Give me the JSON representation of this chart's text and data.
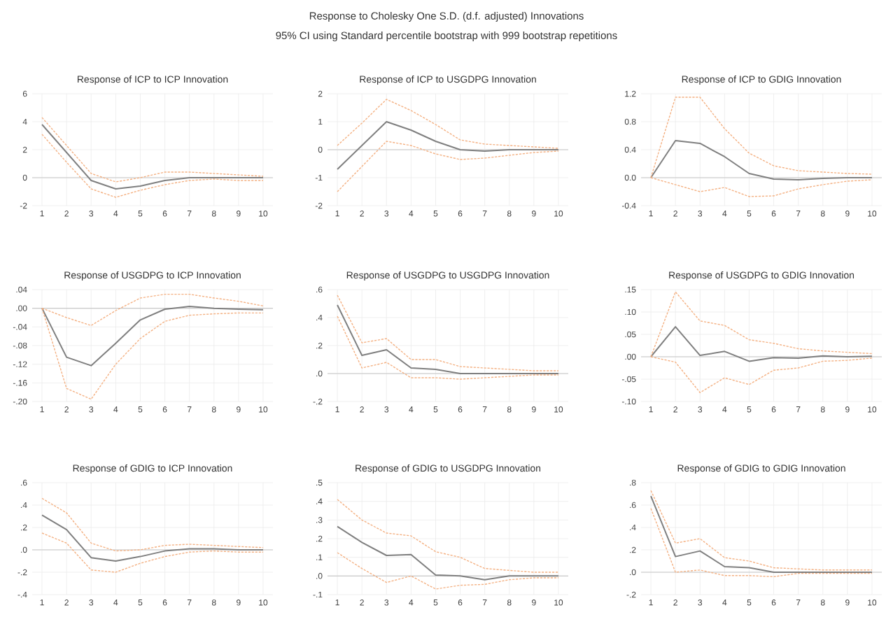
{
  "chart_data": [
    {
      "type": "other",
      "title": "Response to Cholesky One S.D. (d.f. adjusted) Innovations",
      "subtitle": "95% CI using Standard percentile bootstrap with 999 bootstrap repetitions"
    },
    {
      "type": "line",
      "title": "Response of ICP to ICP Innovation",
      "categories": [
        "1",
        "2",
        "3",
        "4",
        "5",
        "6",
        "7",
        "8",
        "9",
        "10"
      ],
      "grid": true,
      "ylim": [
        -2,
        6
      ],
      "yticks": [
        -2,
        0,
        2,
        4,
        6
      ],
      "ref_lines": [
        {
          "axis": "y",
          "value": 0,
          "color": "#c8c8c8"
        }
      ],
      "series": [
        {
          "color": "#7f7f7f",
          "line_style": "solid",
          "values": [
            3.8,
            1.8,
            -0.2,
            -0.8,
            -0.6,
            -0.2,
            0.0,
            0.0,
            0.0,
            0.0
          ]
        },
        {
          "color": "#f4b183",
          "line_style": "dashed",
          "values": [
            4.3,
            2.3,
            0.3,
            -0.3,
            0.0,
            0.4,
            0.4,
            0.3,
            0.2,
            0.1
          ]
        },
        {
          "color": "#f4b183",
          "line_style": "dashed",
          "values": [
            3.1,
            1.1,
            -0.8,
            -1.4,
            -0.9,
            -0.5,
            -0.2,
            -0.1,
            -0.2,
            -0.2
          ]
        }
      ]
    },
    {
      "type": "line",
      "title": "Response of ICP to USGDPG Innovation",
      "categories": [
        "1",
        "2",
        "3",
        "4",
        "5",
        "6",
        "7",
        "8",
        "9",
        "10"
      ],
      "grid": true,
      "ylim": [
        -2,
        2
      ],
      "yticks": [
        -2,
        -1,
        0,
        1,
        2
      ],
      "ref_lines": [
        {
          "axis": "y",
          "value": 0,
          "color": "#c8c8c8"
        }
      ],
      "series": [
        {
          "color": "#7f7f7f",
          "line_style": "solid",
          "values": [
            -0.7,
            0.15,
            1.0,
            0.7,
            0.3,
            0.0,
            -0.05,
            0.0,
            0.0,
            0.0
          ]
        },
        {
          "color": "#f4b183",
          "line_style": "dashed",
          "values": [
            0.15,
            0.95,
            1.8,
            1.4,
            0.9,
            0.35,
            0.2,
            0.15,
            0.1,
            0.05
          ]
        },
        {
          "color": "#f4b183",
          "line_style": "dashed",
          "values": [
            -1.5,
            -0.6,
            0.3,
            0.15,
            -0.15,
            -0.35,
            -0.3,
            -0.2,
            -0.1,
            -0.05
          ]
        }
      ]
    },
    {
      "type": "line",
      "title": "Response of ICP to GDIG Innovation",
      "categories": [
        "1",
        "2",
        "3",
        "4",
        "5",
        "6",
        "7",
        "8",
        "9",
        "10"
      ],
      "grid": true,
      "ylim": [
        -0.4,
        1.2
      ],
      "yticks": [
        {
          "value": -0.4,
          "label": "-0.4"
        },
        {
          "value": 0,
          "label": "0.0"
        },
        {
          "value": 0.4,
          "label": "0.4"
        },
        {
          "value": 0.8,
          "label": "0.8"
        },
        {
          "value": 1.2,
          "label": "1.2"
        }
      ],
      "ref_lines": [
        {
          "axis": "y",
          "value": 0,
          "color": "#c8c8c8"
        }
      ],
      "series": [
        {
          "color": "#7f7f7f",
          "line_style": "solid",
          "values": [
            0.0,
            0.53,
            0.49,
            0.3,
            0.06,
            -0.02,
            -0.03,
            -0.01,
            0.0,
            0.0
          ]
        },
        {
          "color": "#f4b183",
          "line_style": "dashed",
          "values": [
            0.0,
            1.15,
            1.15,
            0.7,
            0.35,
            0.17,
            0.1,
            0.08,
            0.06,
            0.05
          ]
        },
        {
          "color": "#f4b183",
          "line_style": "dashed",
          "values": [
            0.0,
            -0.1,
            -0.2,
            -0.14,
            -0.27,
            -0.26,
            -0.16,
            -0.1,
            -0.05,
            -0.03
          ]
        }
      ]
    },
    {
      "type": "line",
      "title": "Response of USGDPG to ICP Innovation",
      "categories": [
        "1",
        "2",
        "3",
        "4",
        "5",
        "6",
        "7",
        "8",
        "9",
        "10"
      ],
      "grid": true,
      "ylim": [
        -0.2,
        0.04
      ],
      "yticks": [
        {
          "value": -0.2,
          "label": "-.20"
        },
        {
          "value": -0.16,
          "label": "-.16"
        },
        {
          "value": -0.12,
          "label": "-.12"
        },
        {
          "value": -0.08,
          "label": "-.08"
        },
        {
          "value": -0.04,
          "label": "-.04"
        },
        {
          "value": 0,
          "label": ".00"
        },
        {
          "value": 0.04,
          "label": ".04"
        }
      ],
      "ref_lines": [
        {
          "axis": "y",
          "value": 0,
          "color": "#c8c8c8"
        }
      ],
      "series": [
        {
          "color": "#7f7f7f",
          "line_style": "solid",
          "values": [
            0.0,
            -0.105,
            -0.123,
            -0.075,
            -0.025,
            -0.002,
            0.004,
            0.0,
            -0.002,
            -0.003
          ]
        },
        {
          "color": "#f4b183",
          "line_style": "dashed",
          "values": [
            0.0,
            -0.02,
            -0.037,
            -0.005,
            0.022,
            0.03,
            0.03,
            0.022,
            0.015,
            0.005
          ]
        },
        {
          "color": "#f4b183",
          "line_style": "dashed",
          "values": [
            0.0,
            -0.172,
            -0.195,
            -0.12,
            -0.065,
            -0.028,
            -0.015,
            -0.012,
            -0.01,
            -0.01
          ]
        }
      ]
    },
    {
      "type": "line",
      "title": "Response of USGDPG to USGDPG Innovation",
      "categories": [
        "1",
        "2",
        "3",
        "4",
        "5",
        "6",
        "7",
        "8",
        "9",
        "10"
      ],
      "grid": true,
      "ylim": [
        -0.2,
        0.6
      ],
      "yticks": [
        {
          "value": -0.2,
          "label": "-.2"
        },
        {
          "value": 0,
          "label": ".0"
        },
        {
          "value": 0.2,
          "label": ".2"
        },
        {
          "value": 0.4,
          "label": ".4"
        },
        {
          "value": 0.6,
          "label": ".6"
        }
      ],
      "ref_lines": [
        {
          "axis": "y",
          "value": 0,
          "color": "#c8c8c8"
        }
      ],
      "series": [
        {
          "color": "#7f7f7f",
          "line_style": "solid",
          "values": [
            0.49,
            0.13,
            0.17,
            0.04,
            0.03,
            0.0,
            0.0,
            0.0,
            0.0,
            0.0
          ]
        },
        {
          "color": "#f4b183",
          "line_style": "dashed",
          "values": [
            0.56,
            0.22,
            0.25,
            0.1,
            0.1,
            0.05,
            0.04,
            0.03,
            0.02,
            0.02
          ]
        },
        {
          "color": "#f4b183",
          "line_style": "dashed",
          "values": [
            0.41,
            0.04,
            0.08,
            -0.03,
            -0.03,
            -0.04,
            -0.03,
            -0.02,
            -0.01,
            -0.01
          ]
        }
      ]
    },
    {
      "type": "line",
      "title": "Response of USGDPG to GDIG Innovation",
      "categories": [
        "1",
        "2",
        "3",
        "4",
        "5",
        "6",
        "7",
        "8",
        "9",
        "10"
      ],
      "grid": true,
      "ylim": [
        -0.1,
        0.15
      ],
      "yticks": [
        {
          "value": -0.1,
          "label": "-.10"
        },
        {
          "value": -0.05,
          "label": "-.05"
        },
        {
          "value": 0,
          "label": ".00"
        },
        {
          "value": 0.05,
          "label": ".05"
        },
        {
          "value": 0.1,
          "label": ".10"
        },
        {
          "value": 0.15,
          "label": ".15"
        }
      ],
      "ref_lines": [
        {
          "axis": "y",
          "value": 0,
          "color": "#c8c8c8"
        }
      ],
      "series": [
        {
          "color": "#7f7f7f",
          "line_style": "solid",
          "values": [
            0.0,
            0.067,
            0.003,
            0.012,
            -0.01,
            -0.002,
            -0.003,
            0.002,
            0.0,
            0.001
          ]
        },
        {
          "color": "#f4b183",
          "line_style": "dashed",
          "values": [
            0.0,
            0.145,
            0.08,
            0.07,
            0.038,
            0.03,
            0.018,
            0.013,
            0.01,
            0.007
          ]
        },
        {
          "color": "#f4b183",
          "line_style": "dashed",
          "values": [
            0.0,
            -0.012,
            -0.08,
            -0.047,
            -0.062,
            -0.03,
            -0.025,
            -0.01,
            -0.008,
            -0.003
          ]
        }
      ]
    },
    {
      "type": "line",
      "title": "Response of GDIG to ICP Innovation",
      "categories": [
        "1",
        "2",
        "3",
        "4",
        "5",
        "6",
        "7",
        "8",
        "9",
        "10"
      ],
      "grid": true,
      "ylim": [
        -0.4,
        0.6
      ],
      "yticks": [
        {
          "value": -0.4,
          "label": "-.4"
        },
        {
          "value": -0.2,
          "label": "-.2"
        },
        {
          "value": 0,
          "label": ".0"
        },
        {
          "value": 0.2,
          "label": ".2"
        },
        {
          "value": 0.4,
          "label": ".4"
        },
        {
          "value": 0.6,
          "label": ".6"
        }
      ],
      "ref_lines": [
        {
          "axis": "y",
          "value": 0,
          "color": "#c8c8c8"
        }
      ],
      "series": [
        {
          "color": "#7f7f7f",
          "line_style": "solid",
          "values": [
            0.31,
            0.18,
            -0.07,
            -0.1,
            -0.06,
            -0.01,
            0.01,
            0.01,
            0.0,
            0.0
          ]
        },
        {
          "color": "#f4b183",
          "line_style": "dashed",
          "values": [
            0.46,
            0.33,
            0.06,
            -0.01,
            0.0,
            0.04,
            0.05,
            0.04,
            0.03,
            0.02
          ]
        },
        {
          "color": "#f4b183",
          "line_style": "dashed",
          "values": [
            0.15,
            0.06,
            -0.18,
            -0.2,
            -0.12,
            -0.06,
            -0.02,
            -0.01,
            -0.02,
            -0.02
          ]
        }
      ]
    },
    {
      "type": "line",
      "title": "Response of GDIG to USGDPG Innovation",
      "categories": [
        "1",
        "2",
        "3",
        "4",
        "5",
        "6",
        "7",
        "8",
        "9",
        "10"
      ],
      "grid": true,
      "ylim": [
        -0.1,
        0.5
      ],
      "yticks": [
        {
          "value": -0.1,
          "label": "-.1"
        },
        {
          "value": 0,
          "label": ".0"
        },
        {
          "value": 0.1,
          "label": ".1"
        },
        {
          "value": 0.2,
          "label": ".2"
        },
        {
          "value": 0.3,
          "label": ".3"
        },
        {
          "value": 0.4,
          "label": ".4"
        },
        {
          "value": 0.5,
          "label": ".5"
        }
      ],
      "ref_lines": [
        {
          "axis": "y",
          "value": 0,
          "color": "#c8c8c8"
        }
      ],
      "series": [
        {
          "color": "#7f7f7f",
          "line_style": "solid",
          "values": [
            0.265,
            0.18,
            0.11,
            0.115,
            0.005,
            0.0,
            -0.02,
            0.0,
            0.0,
            0.0
          ]
        },
        {
          "color": "#f4b183",
          "line_style": "dashed",
          "values": [
            0.41,
            0.3,
            0.23,
            0.215,
            0.13,
            0.1,
            0.04,
            0.03,
            0.02,
            0.02
          ]
        },
        {
          "color": "#f4b183",
          "line_style": "dashed",
          "values": [
            0.125,
            0.04,
            -0.035,
            0.0,
            -0.07,
            -0.05,
            -0.045,
            -0.02,
            -0.01,
            -0.01
          ]
        }
      ]
    },
    {
      "type": "line",
      "title": "Response of GDIG to GDIG Innovation",
      "categories": [
        "1",
        "2",
        "3",
        "4",
        "5",
        "6",
        "7",
        "8",
        "9",
        "10"
      ],
      "grid": true,
      "ylim": [
        -0.2,
        0.8
      ],
      "yticks": [
        {
          "value": -0.2,
          "label": "-.2"
        },
        {
          "value": 0,
          "label": ".0"
        },
        {
          "value": 0.2,
          "label": ".2"
        },
        {
          "value": 0.4,
          "label": ".4"
        },
        {
          "value": 0.6,
          "label": ".6"
        },
        {
          "value": 0.8,
          "label": ".8"
        }
      ],
      "ref_lines": [
        {
          "axis": "y",
          "value": 0,
          "color": "#c8c8c8"
        }
      ],
      "series": [
        {
          "color": "#7f7f7f",
          "line_style": "solid",
          "values": [
            0.68,
            0.14,
            0.19,
            0.05,
            0.04,
            0.0,
            0.0,
            0.0,
            0.0,
            0.0
          ]
        },
        {
          "color": "#f4b183",
          "line_style": "dashed",
          "values": [
            0.73,
            0.26,
            0.3,
            0.13,
            0.1,
            0.04,
            0.03,
            0.02,
            0.02,
            0.02
          ]
        },
        {
          "color": "#f4b183",
          "line_style": "dashed",
          "values": [
            0.57,
            0.0,
            0.02,
            -0.03,
            -0.03,
            -0.04,
            -0.01,
            -0.01,
            -0.01,
            -0.01
          ]
        }
      ]
    }
  ]
}
